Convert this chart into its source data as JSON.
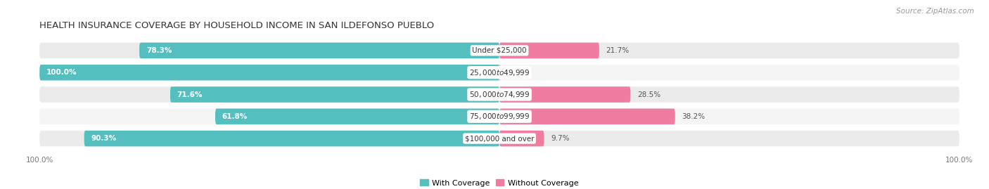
{
  "title": "HEALTH INSURANCE COVERAGE BY HOUSEHOLD INCOME IN SAN ILDEFONSO PUEBLO",
  "source": "Source: ZipAtlas.com",
  "categories": [
    "Under $25,000",
    "$25,000 to $49,999",
    "$50,000 to $74,999",
    "$75,000 to $99,999",
    "$100,000 and over"
  ],
  "with_coverage": [
    78.3,
    100.0,
    71.6,
    61.8,
    90.3
  ],
  "without_coverage": [
    21.7,
    0.0,
    28.5,
    38.2,
    9.7
  ],
  "color_with": "#55bfbf",
  "color_without": "#f07ca0",
  "color_without_light": "#f5b8cc",
  "bg_bar_even": "#ebebeb",
  "bg_bar_odd": "#f5f5f5",
  "bg_fig": "#ffffff",
  "bar_height": 0.72,
  "title_fontsize": 9.5,
  "label_fontsize": 7.5,
  "cat_fontsize": 7.5,
  "tick_fontsize": 7.5,
  "legend_fontsize": 8,
  "source_fontsize": 7.5
}
